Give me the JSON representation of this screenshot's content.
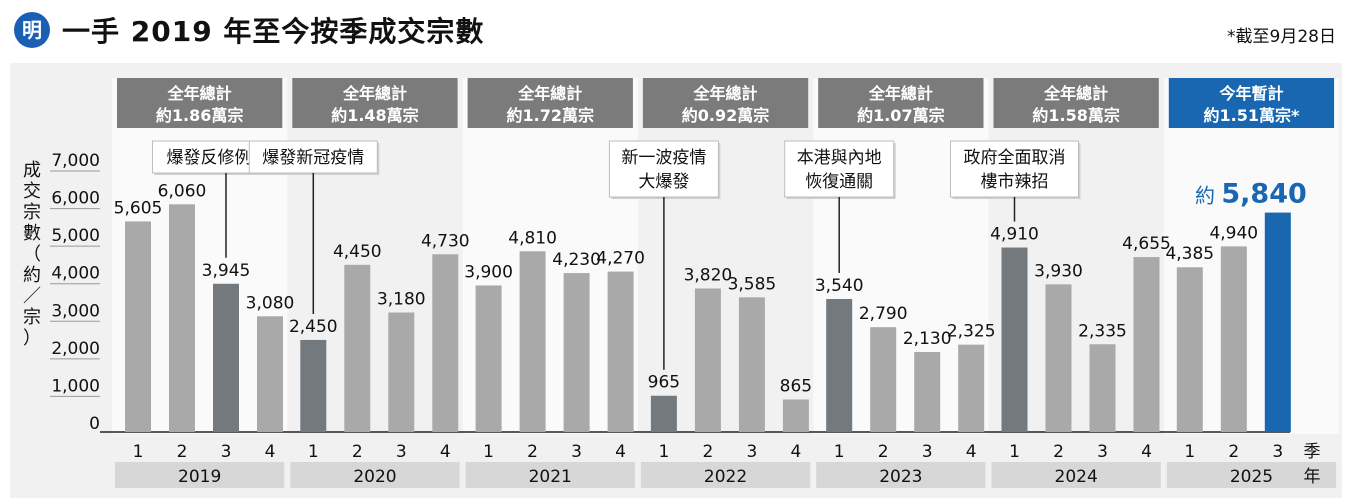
{
  "header": {
    "logo": "明",
    "title": "一手 2019 年至今按季成交宗數",
    "note": "*截至9月28日"
  },
  "colors": {
    "bar_default": "#a9a9a9",
    "bar_highlight": "#74797e",
    "bar_current": "#1a67b1",
    "total_box": "#7b7b7b",
    "total_box_current": "#1a67b1",
    "year_box": "#d7d7d7",
    "band": "#fafafa"
  },
  "chart_data": {
    "type": "bar",
    "ylabel": "成交宗數（約／宗）",
    "ylim": [
      0,
      7000
    ],
    "yticks": [
      "0",
      "1,000",
      "2,000",
      "3,000",
      "4,000",
      "5,000",
      "6,000",
      "7,000"
    ],
    "x_unit_label": "季年",
    "years": [
      {
        "year": "2019",
        "total_line1": "全年總計",
        "total_line2": "約1.86萬宗",
        "quarters": [
          {
            "q": "1",
            "value": 5605,
            "label": "5,605"
          },
          {
            "q": "2",
            "value": 6060,
            "label": "6,060"
          },
          {
            "q": "3",
            "value": 3945,
            "label": "3,945",
            "highlight": true
          },
          {
            "q": "4",
            "value": 3080,
            "label": "3,080"
          }
        ]
      },
      {
        "year": "2020",
        "total_line1": "全年總計",
        "total_line2": "約1.48萬宗",
        "quarters": [
          {
            "q": "1",
            "value": 2450,
            "label": "2,450",
            "highlight": true
          },
          {
            "q": "2",
            "value": 4450,
            "label": "4,450"
          },
          {
            "q": "3",
            "value": 3180,
            "label": "3,180"
          },
          {
            "q": "4",
            "value": 4730,
            "label": "4,730"
          }
        ]
      },
      {
        "year": "2021",
        "total_line1": "全年總計",
        "total_line2": "約1.72萬宗",
        "quarters": [
          {
            "q": "1",
            "value": 3900,
            "label": "3,900"
          },
          {
            "q": "2",
            "value": 4810,
            "label": "4,810"
          },
          {
            "q": "3",
            "value": 4230,
            "label": "4,230"
          },
          {
            "q": "4",
            "value": 4270,
            "label": "4,270"
          }
        ]
      },
      {
        "year": "2022",
        "total_line1": "全年總計",
        "total_line2": "約0.92萬宗",
        "quarters": [
          {
            "q": "1",
            "value": 965,
            "label": "965",
            "highlight": true
          },
          {
            "q": "2",
            "value": 3820,
            "label": "3,820"
          },
          {
            "q": "3",
            "value": 3585,
            "label": "3,585"
          },
          {
            "q": "4",
            "value": 865,
            "label": "865"
          }
        ]
      },
      {
        "year": "2023",
        "total_line1": "全年總計",
        "total_line2": "約1.07萬宗",
        "quarters": [
          {
            "q": "1",
            "value": 3540,
            "label": "3,540",
            "highlight": true
          },
          {
            "q": "2",
            "value": 2790,
            "label": "2,790"
          },
          {
            "q": "3",
            "value": 2130,
            "label": "2,130"
          },
          {
            "q": "4",
            "value": 2325,
            "label": "2,325"
          }
        ]
      },
      {
        "year": "2024",
        "total_line1": "全年總計",
        "total_line2": "約1.58萬宗",
        "quarters": [
          {
            "q": "1",
            "value": 4910,
            "label": "4,910",
            "highlight": true
          },
          {
            "q": "2",
            "value": 3930,
            "label": "3,930"
          },
          {
            "q": "3",
            "value": 2335,
            "label": "2,335"
          },
          {
            "q": "4",
            "value": 4655,
            "label": "4,655"
          }
        ]
      },
      {
        "year": "2025",
        "total_line1": "今年暫計",
        "total_line2": "約1.51萬宗*",
        "current": true,
        "quarters": [
          {
            "q": "1",
            "value": 4385,
            "label": "4,385"
          },
          {
            "q": "2",
            "value": 4940,
            "label": "4,940"
          },
          {
            "q": "3",
            "value": 5840,
            "label": "5,840",
            "prefix": "約",
            "current": true
          }
        ]
      }
    ],
    "annotations": [
      {
        "lines": [
          "爆發反修例風波"
        ],
        "target": "2019-Q3"
      },
      {
        "lines": [
          "爆發新冠疫情"
        ],
        "target": "2020-Q1"
      },
      {
        "lines": [
          "新一波疫情",
          "大爆發"
        ],
        "target": "2022-Q1"
      },
      {
        "lines": [
          "本港與內地",
          "恢復通關"
        ],
        "target": "2023-Q1"
      },
      {
        "lines": [
          "政府全面取消",
          "樓市辣招"
        ],
        "target": "2024-Q1"
      }
    ]
  }
}
